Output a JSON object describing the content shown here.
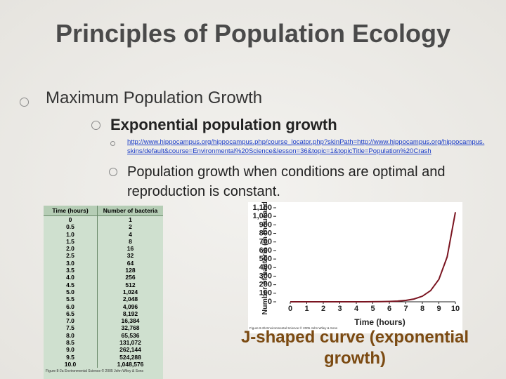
{
  "title": "Principles of Population Ecology",
  "bullets": [
    {
      "text": "Maximum Population Growth"
    },
    {
      "text": "Exponential population growth"
    },
    {
      "text": "http://www.hippocampus.org/hippocampus.php/course_locator.php?skinPath=http://www.hippocampus.org/hippocampus.skins/default&course=Environmental%20Science&lesson=36&topic=1&topicTitle=Population%20Crash"
    },
    {
      "text": "Population growth when conditions are optimal and reproduction is constant."
    }
  ],
  "table": {
    "header": [
      "Time (hours)",
      "Number of bacteria"
    ],
    "rows": [
      [
        "0",
        "1"
      ],
      [
        "0.5",
        "2"
      ],
      [
        "1.0",
        "4"
      ],
      [
        "1.5",
        "8"
      ],
      [
        "2.0",
        "16"
      ],
      [
        "2.5",
        "32"
      ],
      [
        "3.0",
        "64"
      ],
      [
        "3.5",
        "128"
      ],
      [
        "4.0",
        "256"
      ],
      [
        "4.5",
        "512"
      ],
      [
        "5.0",
        "1,024"
      ],
      [
        "5.5",
        "2,048"
      ],
      [
        "6.0",
        "4,096"
      ],
      [
        "6.5",
        "8,192"
      ],
      [
        "7.0",
        "16,384"
      ],
      [
        "7.5",
        "32,768"
      ],
      [
        "8.0",
        "65,536"
      ],
      [
        "8.5",
        "131,072"
      ],
      [
        "9.0",
        "262,144"
      ],
      [
        "9.5",
        "524,288"
      ],
      [
        "10.0",
        "1,048,576"
      ]
    ],
    "caption": "Figure 8-2a Environmental Science © 2005 John Wiley & Sons"
  },
  "chart_data": {
    "type": "line",
    "x_label": "Time (hours)",
    "y_label": "Number of bacteria (in thousands)",
    "x": [
      0,
      0.5,
      1,
      1.5,
      2,
      2.5,
      3,
      3.5,
      4,
      4.5,
      5,
      5.5,
      6,
      6.5,
      7,
      7.5,
      8,
      8.5,
      9,
      9.5,
      10
    ],
    "values": [
      0.001,
      0.002,
      0.004,
      0.008,
      0.016,
      0.032,
      0.064,
      0.128,
      0.256,
      0.512,
      1.024,
      2.048,
      4.096,
      8.192,
      16.384,
      32.768,
      65.536,
      131.072,
      262.144,
      524.288,
      1048.576
    ],
    "color": "#7a1420",
    "xlim": [
      0,
      10
    ],
    "xticks": [
      0,
      1,
      2,
      3,
      4,
      5,
      6,
      7,
      8,
      9,
      10
    ],
    "ylim": [
      0,
      1100
    ],
    "yticks": [
      0,
      100,
      200,
      300,
      400,
      500,
      600,
      700,
      800,
      900,
      {
        "value": 1000,
        "label": "1,000"
      },
      {
        "value": 1100,
        "label": "1,100"
      }
    ],
    "caption": "Figure 8-2b Environmental Science © 2005 John Wiley & Sons"
  },
  "annotation": "J-shaped curve (exponential growth)"
}
